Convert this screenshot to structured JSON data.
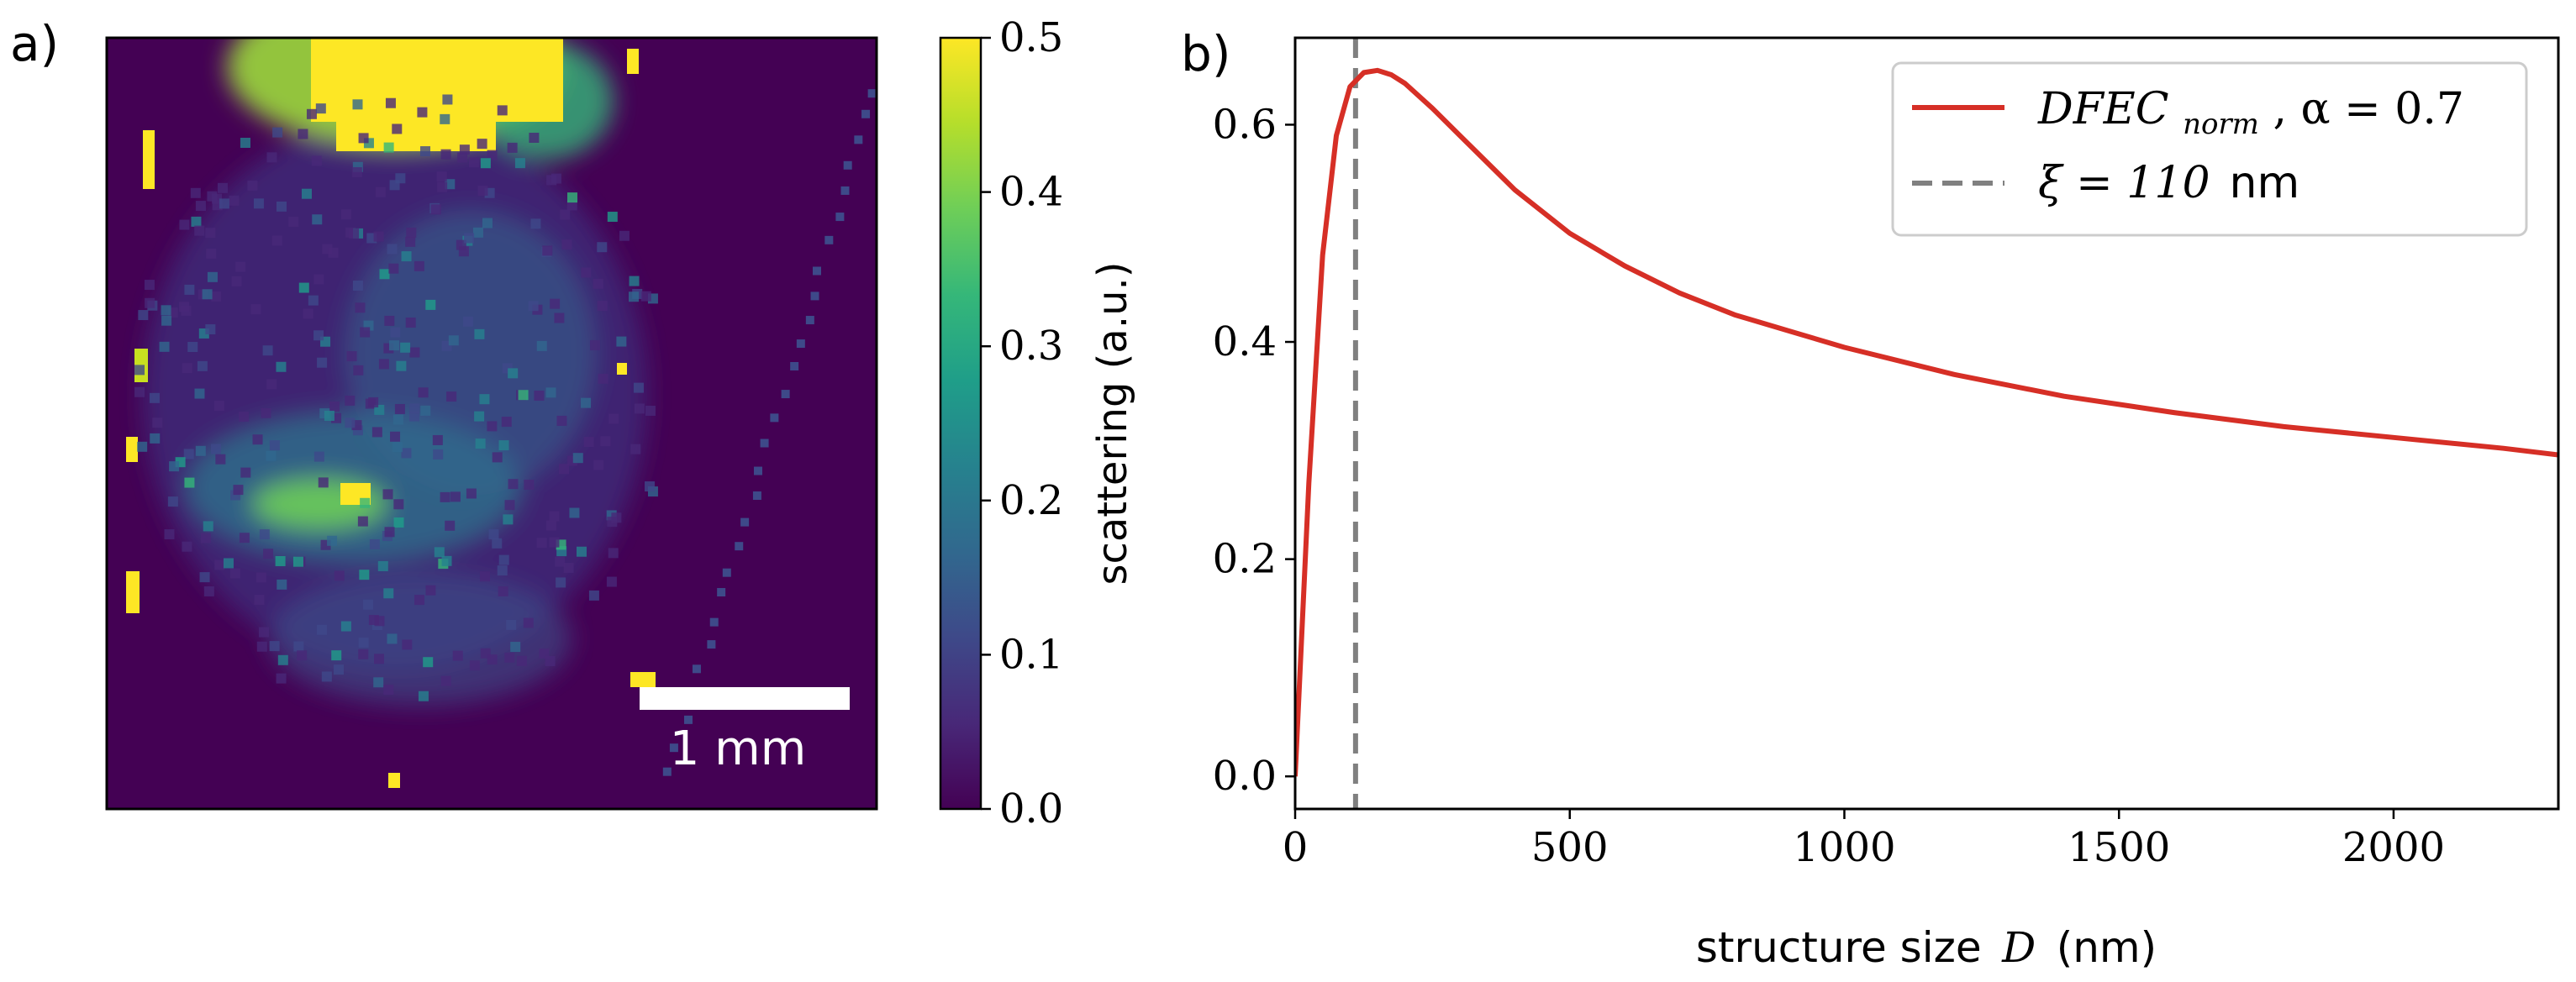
{
  "panel_a": {
    "label": "a)",
    "scale_bar_text": "1 mm",
    "colorbar": {
      "label": "scattering (a.u.)",
      "ticks": [
        "0.0",
        "0.1",
        "0.2",
        "0.3",
        "0.4",
        "0.5"
      ],
      "range": [
        0.0,
        0.5
      ],
      "colors": [
        "#440154",
        "#482878",
        "#3e4989",
        "#31688e",
        "#26828e",
        "#1f9e89",
        "#35b779",
        "#6ece58",
        "#b5de2b",
        "#fde725"
      ]
    }
  },
  "panel_b": {
    "label": "b)",
    "xlabel_prefix": "structure size",
    "xlabel_var": "D",
    "xlabel_suffix": "(nm)",
    "legend": {
      "curve_label_main": "DFEC",
      "curve_label_sub": "norm",
      "curve_label_rest": ", α = 0.7",
      "vline_label_sym": "ξ = 110",
      "vline_label_unit": "nm"
    },
    "xticks": [
      "0",
      "500",
      "1000",
      "1500",
      "2000"
    ],
    "yticks": [
      "0.0",
      "0.2",
      "0.4",
      "0.6"
    ],
    "curve_color": "#d62f26",
    "vline_color": "#808080"
  },
  "chart_data": [
    {
      "type": "heatmap",
      "title": "",
      "colorbar_label": "scattering (a.u.)",
      "vmin": 0.0,
      "vmax": 0.5,
      "colormap": "viridis",
      "scale_bar": "1 mm"
    },
    {
      "type": "line",
      "title": "",
      "xlabel": "structure size D (nm)",
      "ylabel": "",
      "xlim": [
        0,
        2300
      ],
      "ylim": [
        -0.03,
        0.68
      ],
      "series": [
        {
          "name": "DFEC_norm, α = 0.7",
          "x": [
            0,
            25,
            50,
            75,
            100,
            125,
            150,
            175,
            200,
            250,
            300,
            400,
            500,
            600,
            700,
            800,
            900,
            1000,
            1200,
            1400,
            1600,
            1800,
            2000,
            2200,
            2300
          ],
          "y": [
            0.0,
            0.27,
            0.48,
            0.59,
            0.635,
            0.648,
            0.65,
            0.646,
            0.638,
            0.615,
            0.59,
            0.54,
            0.5,
            0.47,
            0.445,
            0.425,
            0.41,
            0.395,
            0.37,
            0.35,
            0.335,
            0.322,
            0.312,
            0.302,
            0.296
          ]
        }
      ],
      "vlines": [
        {
          "name": "ξ = 110 nm",
          "x": 110,
          "style": "dashed"
        }
      ],
      "legend_position": "top-right"
    }
  ]
}
